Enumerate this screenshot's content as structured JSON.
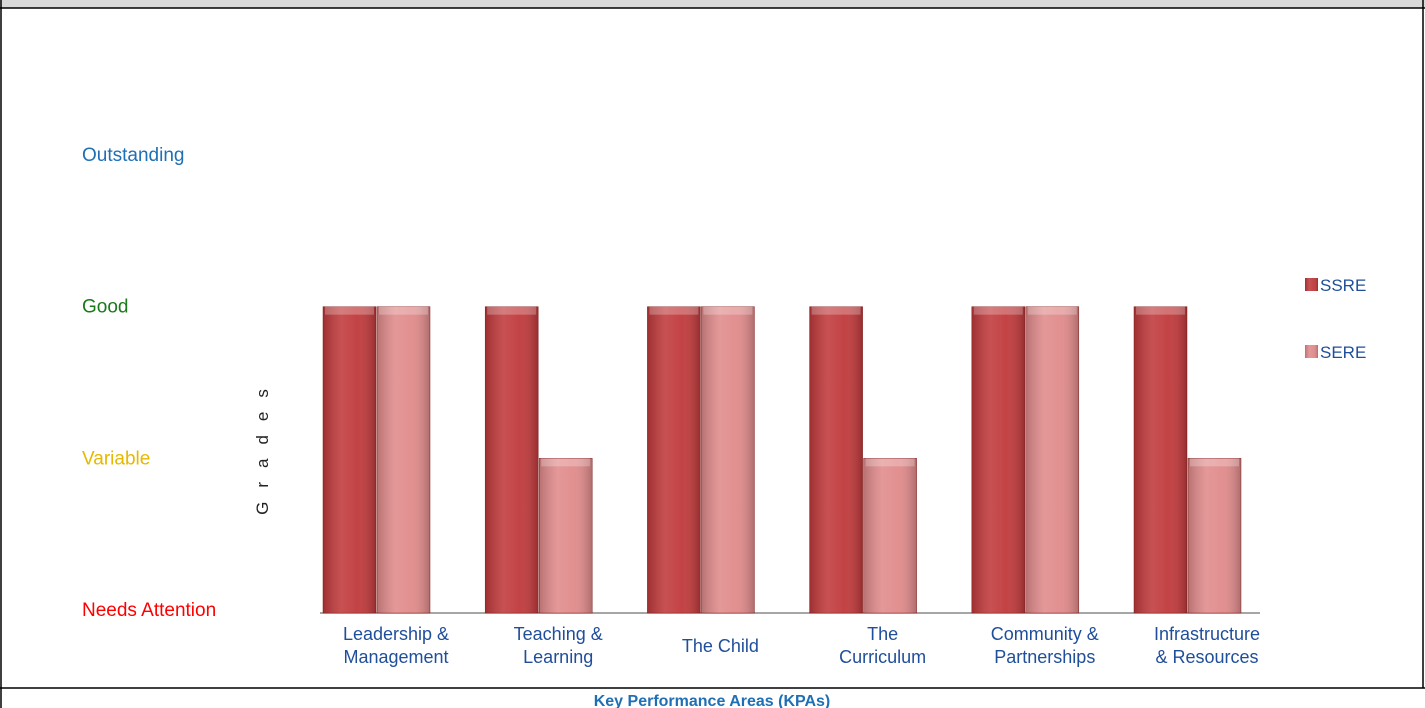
{
  "chart_data": {
    "type": "bar",
    "x_label": "Key Performance Areas (KPAs)",
    "y_label": "Grades",
    "categories": [
      "Leadership &\nManagement",
      "Teaching &\nLearning",
      "The Child",
      "The\nCurriculum",
      "Community &\nPartnerships",
      "Infrastructure\n& Resources"
    ],
    "series": [
      {
        "name": "SSRE",
        "color": "#c0393b",
        "values": [
          3,
          3,
          3,
          3,
          3,
          3
        ]
      },
      {
        "name": "SERE",
        "color": "#e08a8a",
        "values": [
          3,
          2,
          3,
          2,
          3,
          2
        ]
      }
    ],
    "ylim": [
      1,
      4
    ],
    "yticks": [
      {
        "value": 1,
        "label": "Needs Attention"
      },
      {
        "value": 2,
        "label": "Variable"
      },
      {
        "value": 3,
        "label": "Good"
      },
      {
        "value": 4,
        "label": "Outstanding"
      }
    ],
    "ytick_colors": [
      "#ff0000",
      "#e6b800",
      "#1a7a1a",
      "#1f6fb5"
    ],
    "legend": "right"
  }
}
